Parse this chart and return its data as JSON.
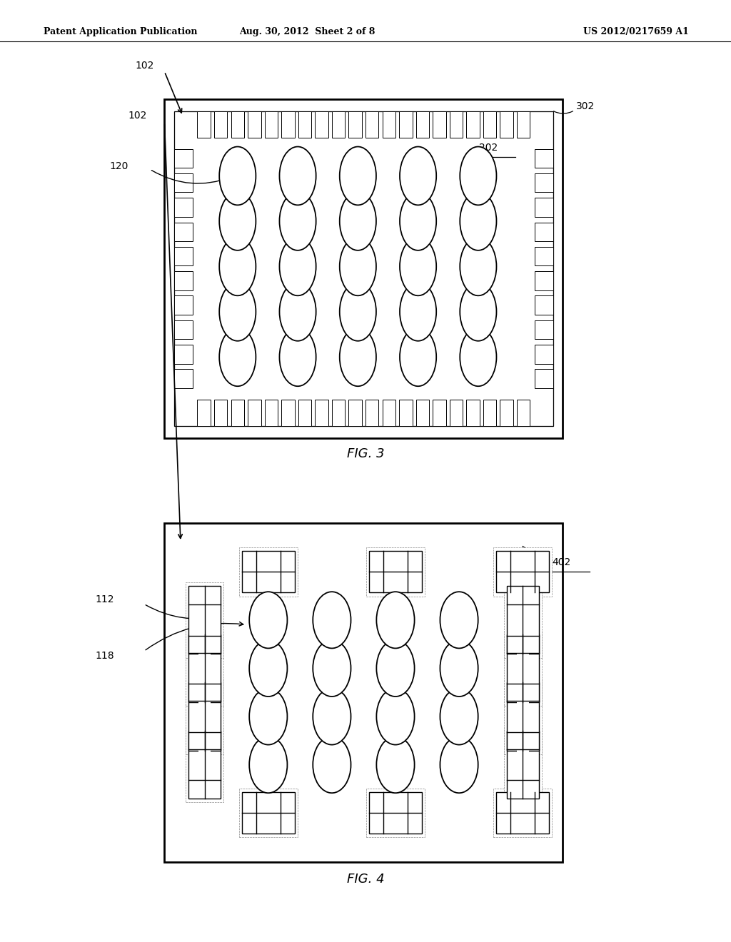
{
  "bg_color": "#ffffff",
  "header_text": "Patent Application Publication",
  "header_date": "Aug. 30, 2012  Sheet 2 of 8",
  "header_patent": "US 2012/0217659 A1",
  "fig3_label": "FIG. 3",
  "fig4_label": "FIG. 4",
  "fig3_ref102": "102",
  "fig3_ref120": "120",
  "fig3_ref202": "202",
  "fig3_ref302": "302",
  "fig4_ref102": "102",
  "fig4_ref112": "112",
  "fig4_ref118": "118",
  "fig4_ref402": "402",
  "line_color": "#000000",
  "fig3_bx": 0.225,
  "fig3_by": 0.535,
  "fig3_bw": 0.545,
  "fig3_bh": 0.36,
  "fig4_bx": 0.225,
  "fig4_by": 0.085,
  "fig4_bw": 0.545,
  "fig4_bh": 0.36
}
